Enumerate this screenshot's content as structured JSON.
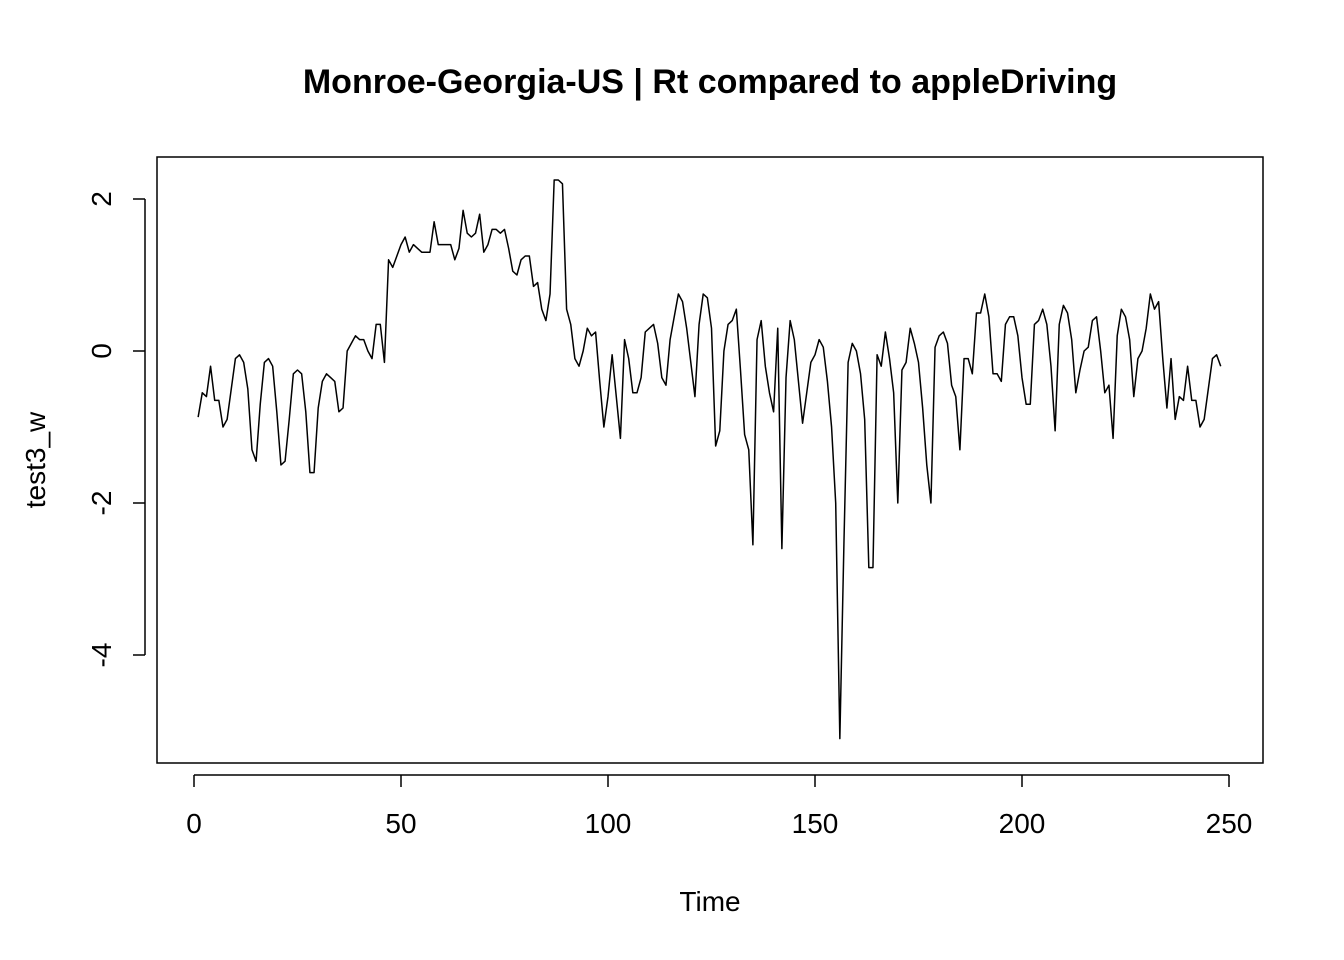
{
  "chart_data": {
    "type": "line",
    "title": "Monroe-Georgia-US | Rt compared to appleDriving",
    "xlabel": "Time",
    "ylabel": "test3_w",
    "xlim": [
      0,
      250
    ],
    "ylim": [
      -5,
      2
    ],
    "x_ticks": [
      0,
      50,
      100,
      150,
      200,
      250
    ],
    "y_ticks": [
      -4,
      -2,
      0,
      2
    ],
    "grid": false,
    "legend": "none",
    "line_color": "#000000",
    "series": [
      {
        "x_start": 1,
        "values": [
          -0.87,
          -0.55,
          -0.6,
          -0.2,
          -0.65,
          -0.65,
          -1.0,
          -0.9,
          -0.5,
          -0.1,
          -0.05,
          -0.15,
          -0.5,
          -1.3,
          -1.45,
          -0.7,
          -0.15,
          -0.1,
          -0.2,
          -0.8,
          -1.5,
          -1.45,
          -0.9,
          -0.3,
          -0.25,
          -0.3,
          -0.8,
          -1.6,
          -1.6,
          -0.75,
          -0.4,
          -0.3,
          -0.35,
          -0.4,
          -0.8,
          -0.75,
          0.0,
          0.1,
          0.2,
          0.15,
          0.15,
          0.0,
          -0.1,
          0.35,
          0.35,
          -0.15,
          1.2,
          1.1,
          1.25,
          1.4,
          1.5,
          1.3,
          1.4,
          1.35,
          1.3,
          1.3,
          1.3,
          1.7,
          1.4,
          1.4,
          1.4,
          1.4,
          1.2,
          1.35,
          1.85,
          1.55,
          1.5,
          1.55,
          1.8,
          1.3,
          1.4,
          1.6,
          1.6,
          1.55,
          1.6,
          1.35,
          1.05,
          1.0,
          1.2,
          1.25,
          1.25,
          0.85,
          0.9,
          0.55,
          0.4,
          0.75,
          2.25,
          2.25,
          2.2,
          0.55,
          0.35,
          -0.1,
          -0.2,
          0.0,
          0.3,
          0.2,
          0.25,
          -0.4,
          -1.0,
          -0.6,
          -0.05,
          -0.6,
          -1.15,
          0.15,
          -0.1,
          -0.55,
          -0.55,
          -0.35,
          0.25,
          0.3,
          0.35,
          0.1,
          -0.35,
          -0.45,
          0.15,
          0.45,
          0.75,
          0.65,
          0.3,
          -0.15,
          -0.6,
          0.35,
          0.75,
          0.7,
          0.3,
          -1.25,
          -1.05,
          0.0,
          0.35,
          0.4,
          0.55,
          -0.25,
          -1.1,
          -1.3,
          -2.55,
          0.15,
          0.4,
          -0.2,
          -0.55,
          -0.8,
          0.3,
          -2.6,
          -0.35,
          0.4,
          0.15,
          -0.4,
          -0.95,
          -0.55,
          -0.15,
          -0.05,
          0.15,
          0.05,
          -0.4,
          -1.0,
          -2.0,
          -5.1,
          -2.5,
          -0.15,
          0.1,
          0.0,
          -0.3,
          -0.9,
          -2.85,
          -2.85,
          -0.05,
          -0.2,
          0.25,
          -0.1,
          -0.55,
          -2.0,
          -0.25,
          -0.15,
          0.3,
          0.1,
          -0.15,
          -0.75,
          -1.5,
          -2.0,
          0.05,
          0.2,
          0.25,
          0.1,
          -0.45,
          -0.6,
          -1.3,
          -0.1,
          -0.1,
          -0.3,
          0.5,
          0.5,
          0.75,
          0.45,
          -0.3,
          -0.3,
          -0.4,
          0.35,
          0.45,
          0.45,
          0.2,
          -0.35,
          -0.7,
          -0.7,
          0.35,
          0.4,
          0.55,
          0.35,
          -0.2,
          -1.05,
          0.35,
          0.6,
          0.5,
          0.15,
          -0.55,
          -0.25,
          0.0,
          0.05,
          0.4,
          0.45,
          0.0,
          -0.55,
          -0.45,
          -1.15,
          0.2,
          0.55,
          0.45,
          0.15,
          -0.6,
          -0.1,
          0.0,
          0.3,
          0.75,
          0.55,
          0.65,
          -0.1,
          -0.75,
          -0.1,
          -0.9,
          -0.6,
          -0.65,
          -0.2,
          -0.65,
          -0.65,
          -1.0,
          -0.9,
          -0.5,
          -0.1,
          -0.05,
          -0.2
        ]
      }
    ]
  }
}
